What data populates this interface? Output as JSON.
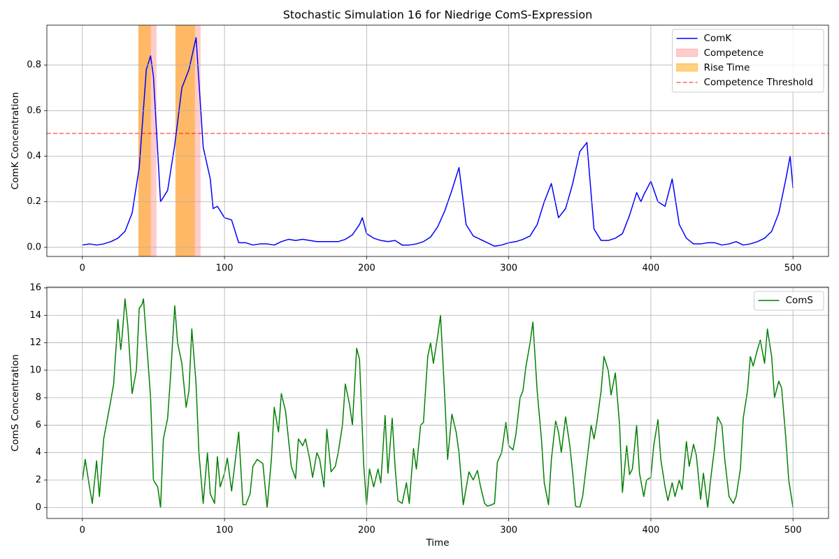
{
  "chart_data": [
    {
      "type": "line",
      "title": "Stochastic Simulation 16 for Niedrige ComS-Expression",
      "y_label": "ComK Concentration",
      "x": [
        0,
        5,
        10,
        15,
        20,
        25,
        30,
        35,
        40,
        45,
        48,
        50,
        55,
        60,
        65,
        70,
        75,
        80,
        85,
        90,
        92,
        95,
        100,
        105,
        110,
        115,
        120,
        125,
        130,
        135,
        140,
        145,
        150,
        155,
        160,
        165,
        170,
        175,
        180,
        185,
        190,
        195,
        197,
        200,
        205,
        210,
        215,
        220,
        225,
        230,
        235,
        240,
        245,
        250,
        255,
        260,
        265,
        270,
        275,
        280,
        285,
        290,
        295,
        300,
        305,
        310,
        315,
        320,
        325,
        330,
        335,
        340,
        345,
        350,
        355,
        360,
        365,
        370,
        375,
        380,
        385,
        390,
        393,
        395,
        400,
        405,
        410,
        415,
        420,
        425,
        430,
        435,
        440,
        445,
        450,
        455,
        460,
        465,
        470,
        475,
        480,
        485,
        490,
        495,
        498,
        500
      ],
      "series": [
        {
          "name": "ComK",
          "color": "#0000ff",
          "values": [
            0.01,
            0.015,
            0.01,
            0.015,
            0.025,
            0.04,
            0.07,
            0.15,
            0.35,
            0.78,
            0.84,
            0.75,
            0.2,
            0.25,
            0.45,
            0.7,
            0.78,
            0.92,
            0.44,
            0.3,
            0.17,
            0.18,
            0.13,
            0.12,
            0.02,
            0.02,
            0.01,
            0.015,
            0.015,
            0.01,
            0.025,
            0.035,
            0.03,
            0.035,
            0.03,
            0.025,
            0.025,
            0.025,
            0.025,
            0.035,
            0.055,
            0.1,
            0.13,
            0.06,
            0.04,
            0.03,
            0.025,
            0.03,
            0.01,
            0.01,
            0.015,
            0.025,
            0.045,
            0.09,
            0.16,
            0.25,
            0.35,
            0.1,
            0.05,
            0.035,
            0.02,
            0.005,
            0.01,
            0.02,
            0.025,
            0.035,
            0.05,
            0.1,
            0.2,
            0.28,
            0.13,
            0.17,
            0.28,
            0.42,
            0.46,
            0.08,
            0.03,
            0.03,
            0.04,
            0.06,
            0.14,
            0.24,
            0.2,
            0.23,
            0.29,
            0.2,
            0.18,
            0.3,
            0.1,
            0.04,
            0.015,
            0.015,
            0.02,
            0.02,
            0.01,
            0.015,
            0.025,
            0.01,
            0.015,
            0.025,
            0.04,
            0.07,
            0.15,
            0.3,
            0.4,
            0.26
          ]
        }
      ],
      "spans": [
        {
          "name": "Competence",
          "color": "red",
          "alpha": 0.2,
          "ranges": [
            [
              39.4,
              52.2
            ],
            [
              65.5,
              83.2
            ]
          ]
        },
        {
          "name": "Rise Time",
          "color": "orange",
          "alpha": 0.5,
          "ranges": [
            [
              39.4,
              48.2
            ],
            [
              65.5,
              79.2
            ]
          ]
        }
      ],
      "hlines": [
        {
          "name": "Competence Threshold",
          "value": 0.5,
          "color": "red",
          "alpha": 0.6,
          "dashed": true
        }
      ],
      "xlim": [
        -25,
        525
      ],
      "ylim": [
        -0.04,
        0.975
      ],
      "xticks": [
        0,
        100,
        200,
        300,
        400,
        500
      ],
      "yticks": [
        {
          "value": 0,
          "label": "0.0"
        },
        0.2,
        0.4,
        0.6,
        0.8
      ],
      "grid": true,
      "legend": "upper right"
    },
    {
      "type": "line",
      "x_label": "Time",
      "y_label": "ComS Concentration",
      "x": [
        0,
        2,
        5,
        7,
        10,
        12,
        15,
        20,
        22,
        25,
        27,
        28,
        30,
        32,
        35,
        38,
        40,
        42,
        43,
        45,
        48,
        50,
        53,
        55,
        57,
        60,
        62,
        65,
        67,
        70,
        73,
        75,
        77,
        80,
        82,
        85,
        88,
        90,
        93,
        95,
        97,
        100,
        102,
        105,
        110,
        113,
        115,
        118,
        120,
        123,
        127,
        130,
        133,
        135,
        138,
        140,
        143,
        147,
        150,
        152,
        155,
        157,
        160,
        162,
        165,
        167,
        170,
        172,
        175,
        178,
        180,
        183,
        185,
        188,
        190,
        193,
        195,
        198,
        200,
        202,
        205,
        208,
        210,
        213,
        215,
        218,
        220,
        222,
        225,
        228,
        230,
        233,
        235,
        238,
        240,
        243,
        245,
        247,
        250,
        252,
        255,
        257,
        260,
        263,
        265,
        268,
        272,
        275,
        278,
        280,
        283,
        285,
        288,
        290,
        292,
        295,
        298,
        300,
        303,
        305,
        308,
        310,
        312,
        315,
        317,
        320,
        323,
        325,
        328,
        330,
        333,
        335,
        337,
        340,
        343,
        345,
        347,
        350,
        352,
        355,
        358,
        360,
        362,
        365,
        367,
        370,
        372,
        375,
        378,
        380,
        383,
        385,
        387,
        390,
        392,
        395,
        397,
        400,
        402,
        405,
        407,
        410,
        412,
        415,
        417,
        420,
        422,
        425,
        427,
        430,
        432,
        435,
        437,
        440,
        442,
        445,
        447,
        450,
        452,
        455,
        458,
        460,
        463,
        465,
        468,
        470,
        472,
        475,
        477,
        480,
        482,
        485,
        487,
        490,
        492,
        495,
        497,
        500
      ],
      "series": [
        {
          "name": "ComS",
          "color": "#008000",
          "values": [
            2,
            3.5,
            1.5,
            0.3,
            3.4,
            0.8,
            5,
            7.8,
            9,
            13.7,
            11.5,
            12.5,
            15.2,
            13.2,
            8.3,
            10,
            14.5,
            14.8,
            15.2,
            12.3,
            8,
            2,
            1.5,
            0,
            5,
            6.5,
            9.5,
            14.7,
            12,
            10.5,
            7.3,
            8.5,
            13,
            9,
            4,
            0.3,
            4,
            1,
            0.3,
            3.7,
            1.5,
            2.5,
            3.6,
            1.2,
            5.5,
            0.2,
            0.2,
            1,
            3,
            3.5,
            3.2,
            0,
            3.5,
            7.3,
            5.5,
            8.3,
            7,
            3,
            2.1,
            5,
            4.5,
            5,
            3.5,
            2.2,
            4,
            3.5,
            1.5,
            5.7,
            2.6,
            3,
            4,
            6,
            9,
            7.5,
            6,
            11.6,
            10.8,
            3,
            0.2,
            2.8,
            1.5,
            2.8,
            1.8,
            6.7,
            2.5,
            6.5,
            3,
            0.5,
            0.3,
            1.8,
            0.3,
            4.3,
            2.8,
            6,
            6.2,
            11,
            12,
            10.5,
            12.5,
            14,
            8,
            3.5,
            6.8,
            5.5,
            4,
            0.2,
            2.6,
            2,
            2.7,
            1.6,
            0.3,
            0.1,
            0.2,
            0.3,
            3.3,
            4,
            6.2,
            4.5,
            4.2,
            5.3,
            8,
            8.5,
            10.2,
            12,
            13.5,
            8.5,
            5,
            1.8,
            0.2,
            3.5,
            6.3,
            5.5,
            4,
            6.6,
            4.5,
            2.5,
            0.1,
            0,
            0.8,
            3.4,
            6,
            5,
            6.2,
            8.5,
            11,
            10,
            8.2,
            9.8,
            6,
            1.1,
            4.5,
            2.4,
            2.8,
            6,
            2.5,
            0.8,
            2,
            2.2,
            4.5,
            6.4,
            3.5,
            1.5,
            0.5,
            1.8,
            0.8,
            2,
            1.3,
            4.8,
            3,
            4.6,
            3.8,
            0.6,
            2.5,
            0,
            2,
            4.5,
            6.6,
            6,
            3.5,
            0.8,
            0.3,
            0.8,
            2.8,
            6.5,
            8.5,
            11,
            10.3,
            11.5,
            12.2,
            10.5,
            13,
            11,
            8,
            9.2,
            8.7,
            5,
            2,
            0
          ]
        }
      ],
      "xlim": [
        -25,
        525
      ],
      "ylim": [
        -0.8,
        16.05
      ],
      "xticks": [
        0,
        100,
        200,
        300,
        400,
        500
      ],
      "yticks": [
        0,
        2,
        4,
        6,
        8,
        10,
        12,
        14,
        16
      ],
      "grid": true,
      "legend": "upper right"
    }
  ]
}
